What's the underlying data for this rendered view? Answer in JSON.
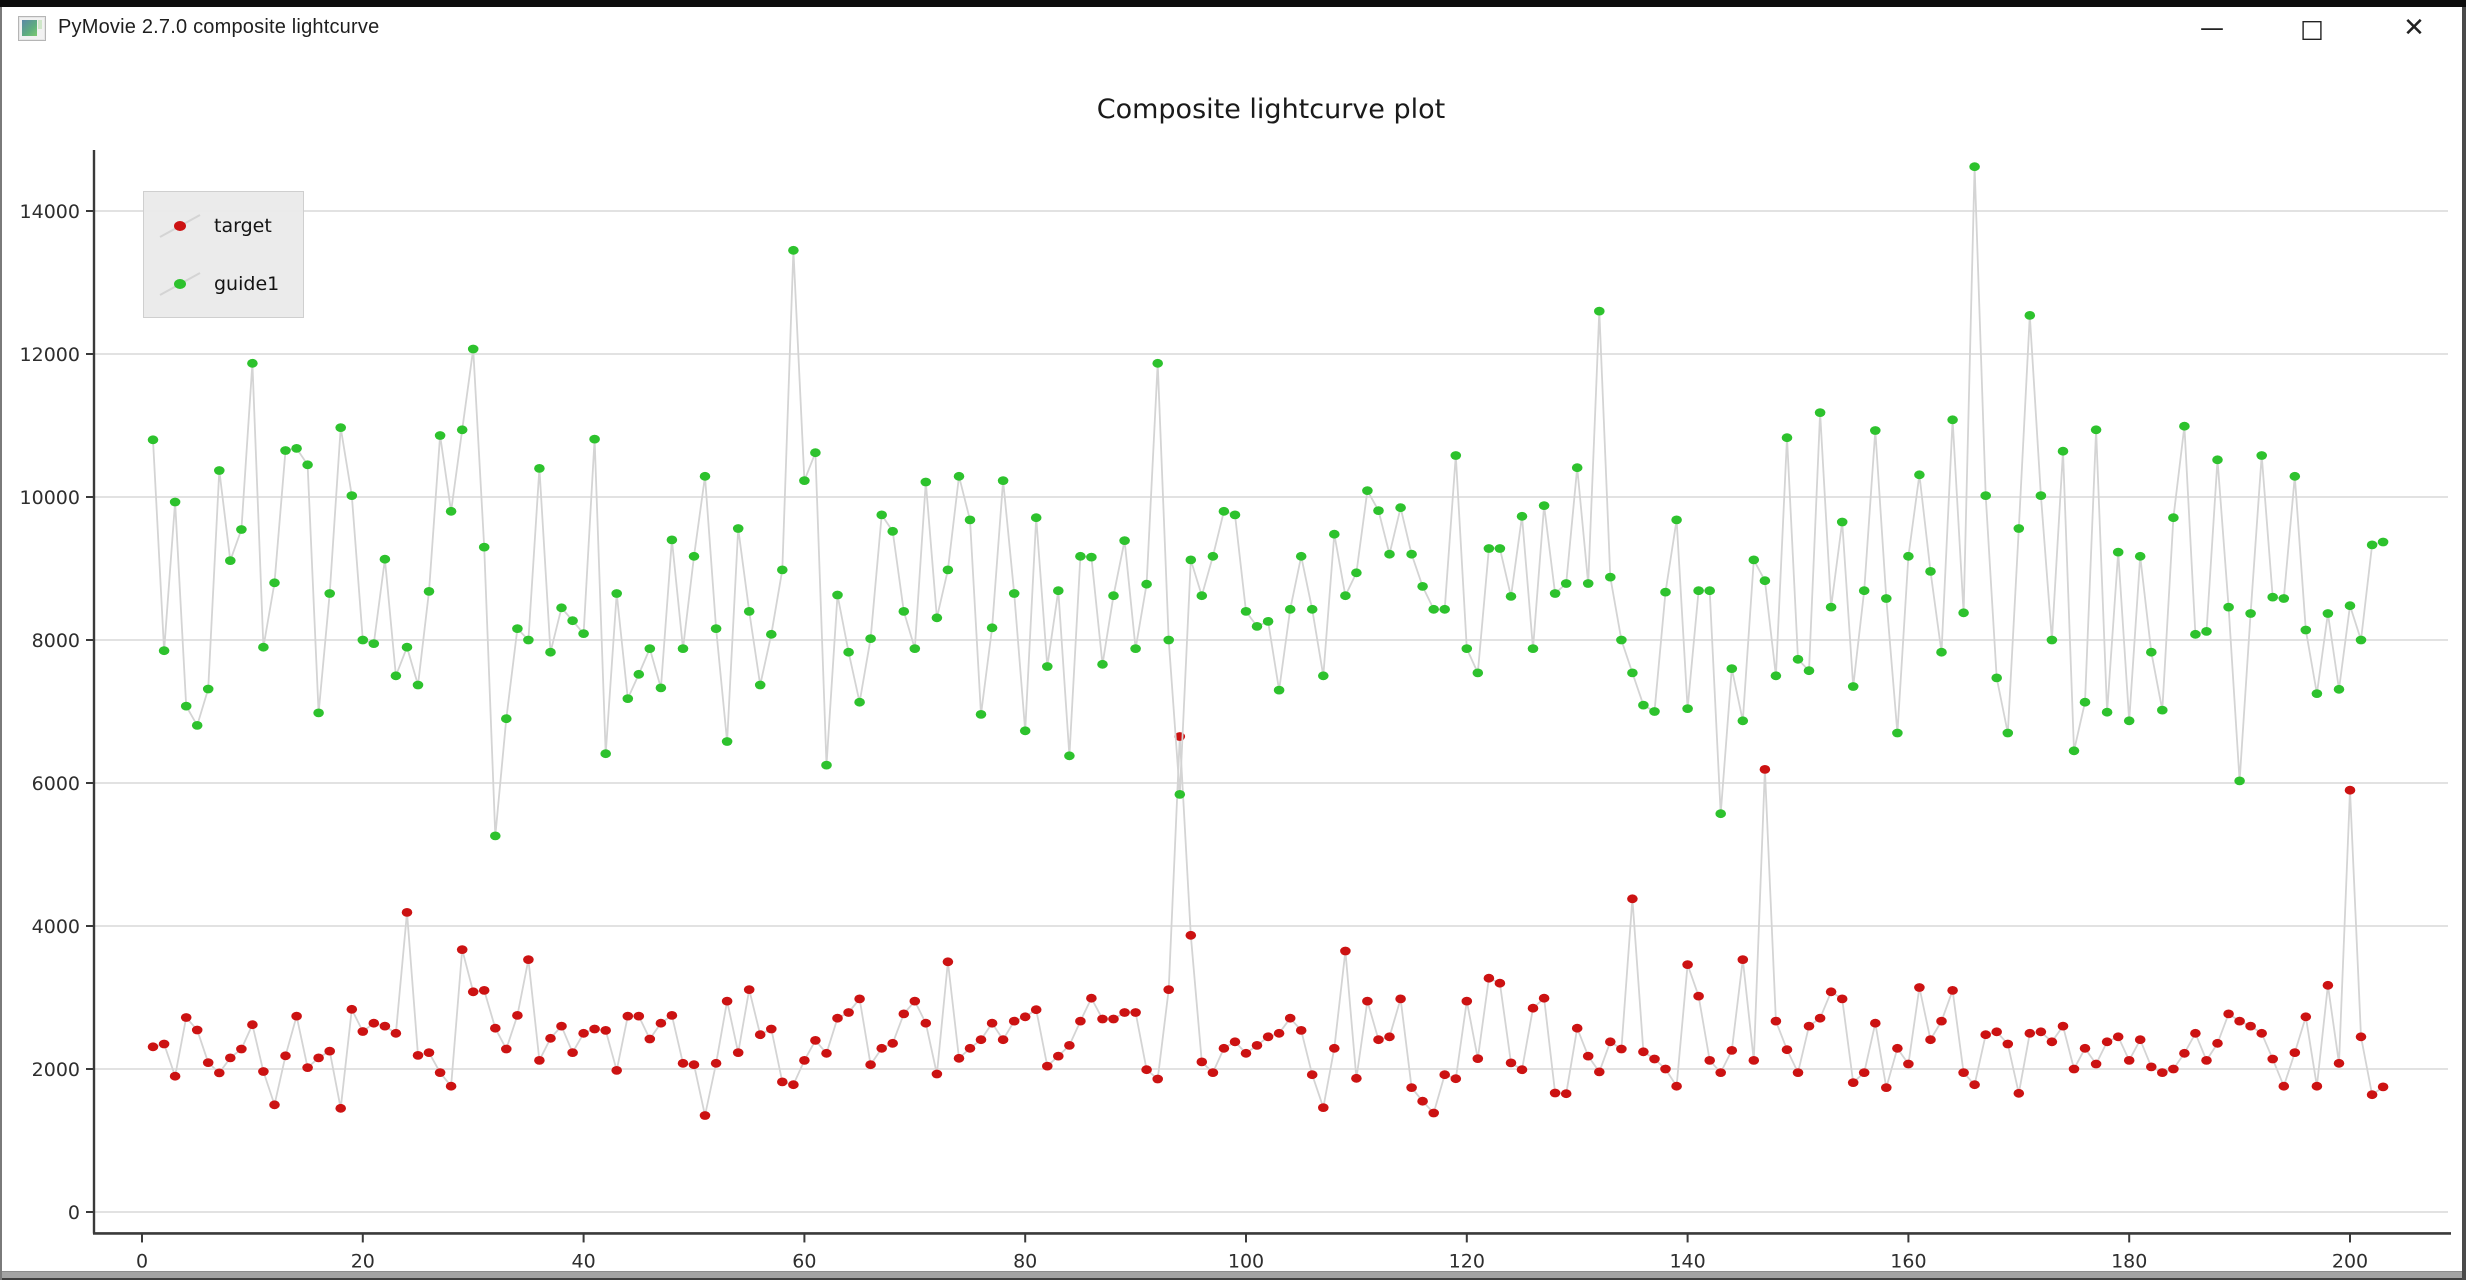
{
  "window": {
    "title": "PyMovie 2.7.0 composite lightcurve",
    "controls": {
      "minimize": "—",
      "maximize": "□",
      "close": "✕"
    }
  },
  "chart_data": {
    "type": "line",
    "title": "Composite lightcurve plot",
    "xlabel": "",
    "ylabel": "",
    "x_start": 1,
    "xlim": [
      -4.3,
      208.8
    ],
    "ylim": [
      -300,
      14830
    ],
    "xticks": [
      0,
      20,
      40,
      60,
      80,
      100,
      120,
      140,
      160,
      180,
      200
    ],
    "yticks": [
      0,
      2000,
      4000,
      6000,
      8000,
      10000,
      12000,
      14000
    ],
    "grid": "horizontal",
    "legend_position": "upper-left",
    "colors": {
      "line": "#d4d4d4",
      "grid": "#d9d9d9",
      "axis": "#3a3a3a",
      "tick_text": "#2e2e2e",
      "title_text": "#1a1a1a"
    },
    "series": [
      {
        "name": "target",
        "color": "#cc1212",
        "values": [
          2310,
          2350,
          1900,
          2720,
          2545,
          2090,
          1945,
          2155,
          2280,
          2620,
          1965,
          1500,
          2185,
          2740,
          2020,
          2155,
          2250,
          1450,
          2835,
          2525,
          2640,
          2600,
          2500,
          4190,
          2190,
          2230,
          1950,
          1760,
          3670,
          3080,
          3100,
          2570,
          2280,
          2750,
          3530,
          2120,
          2430,
          2600,
          2230,
          2500,
          2560,
          2540,
          1980,
          2740,
          2740,
          2420,
          2640,
          2750,
          2080,
          2060,
          1350,
          2080,
          2950,
          2230,
          3110,
          2480,
          2560,
          1820,
          1780,
          2120,
          2400,
          2220,
          2710,
          2790,
          2980,
          2060,
          2290,
          2360,
          2770,
          2950,
          2640,
          1930,
          3500,
          2150,
          2290,
          2410,
          2640,
          2410,
          2670,
          2730,
          2830,
          2040,
          2180,
          2330,
          2670,
          2990,
          2700,
          2700,
          2790,
          2790,
          1990,
          1860,
          3110,
          6650,
          3870,
          2100,
          1950,
          2290,
          2380,
          2220,
          2330,
          2450,
          2500,
          2710,
          2540,
          1920,
          1460,
          2290,
          3650,
          1870,
          2950,
          2410,
          2450,
          2980,
          1740,
          1550,
          1385,
          1920,
          1865,
          2950,
          2145,
          3270,
          3200,
          2085,
          1990,
          2850,
          2990,
          1665,
          1655,
          2570,
          2180,
          1960,
          2380,
          2280,
          4380,
          2240,
          2140,
          2000,
          1760,
          3460,
          3020,
          2120,
          1950,
          2260,
          3530,
          2120,
          6190,
          2670,
          2270,
          1950,
          2600,
          2710,
          3080,
          2980,
          1810,
          1950,
          2640,
          1740,
          2290,
          2070,
          3140,
          2410,
          2670,
          3100,
          1950,
          1780,
          2480,
          2520,
          2350,
          1660,
          2500,
          2520,
          2380,
          2600,
          2000,
          2290,
          2070,
          2380,
          2450,
          2120,
          2410,
          2030,
          1950,
          2000,
          2220,
          2500,
          2120,
          2360,
          2770,
          2670,
          2600,
          2500,
          2140,
          1760,
          2230,
          2730,
          1760,
          3170,
          2080,
          5900,
          2450,
          1640,
          1750
        ]
      },
      {
        "name": "guide1",
        "color": "#2dc22d",
        "values": [
          10800,
          7850,
          9930,
          7075,
          6805,
          7315,
          10370,
          9110,
          9545,
          11870,
          7900,
          8800,
          10650,
          10680,
          10450,
          6980,
          8650,
          10970,
          10020,
          8000,
          7950,
          9130,
          7500,
          7900,
          7370,
          8680,
          10860,
          9800,
          10940,
          12070,
          9300,
          5260,
          6900,
          8160,
          8000,
          10400,
          7830,
          8450,
          8270,
          8090,
          10810,
          6410,
          8650,
          7180,
          7520,
          7880,
          7330,
          9400,
          7880,
          9170,
          10290,
          8160,
          6580,
          9560,
          8400,
          7370,
          8080,
          8980,
          13450,
          10230,
          10620,
          6250,
          8630,
          7830,
          7130,
          8020,
          9750,
          9520,
          8400,
          7880,
          10210,
          8310,
          8980,
          10290,
          9680,
          6960,
          8170,
          10230,
          8650,
          6730,
          9710,
          7630,
          8690,
          6380,
          9170,
          9160,
          7660,
          8620,
          9390,
          7880,
          8780,
          11870,
          8000,
          5840,
          9120,
          8620,
          9170,
          9800,
          9750,
          8400,
          8190,
          8260,
          7300,
          8430,
          9170,
          8430,
          7500,
          9480,
          8620,
          8940,
          10090,
          9810,
          9200,
          9850,
          9200,
          8750,
          8430,
          8430,
          10580,
          7880,
          7540,
          9280,
          9280,
          8610,
          9730,
          7880,
          9880,
          8650,
          8790,
          10410,
          8790,
          12600,
          8880,
          8000,
          7540,
          7090,
          7000,
          8670,
          9680,
          7040,
          8690,
          8690,
          5570,
          7600,
          6870,
          9120,
          8830,
          7500,
          10830,
          7730,
          7570,
          11180,
          8460,
          9650,
          7350,
          8690,
          10930,
          8580,
          6700,
          9170,
          10310,
          8960,
          7830,
          11080,
          8380,
          14620,
          10020,
          7470,
          6700,
          9560,
          12540,
          10020,
          8000,
          10640,
          6450,
          7130,
          10940,
          6990,
          9230,
          6870,
          9170,
          7830,
          7020,
          9710,
          10990,
          8080,
          8120,
          10520,
          8460,
          6030,
          8370,
          10580,
          8600,
          8580,
          10290,
          8140,
          7250,
          8370,
          7310,
          8480,
          8000,
          9330,
          9370
        ]
      }
    ]
  }
}
